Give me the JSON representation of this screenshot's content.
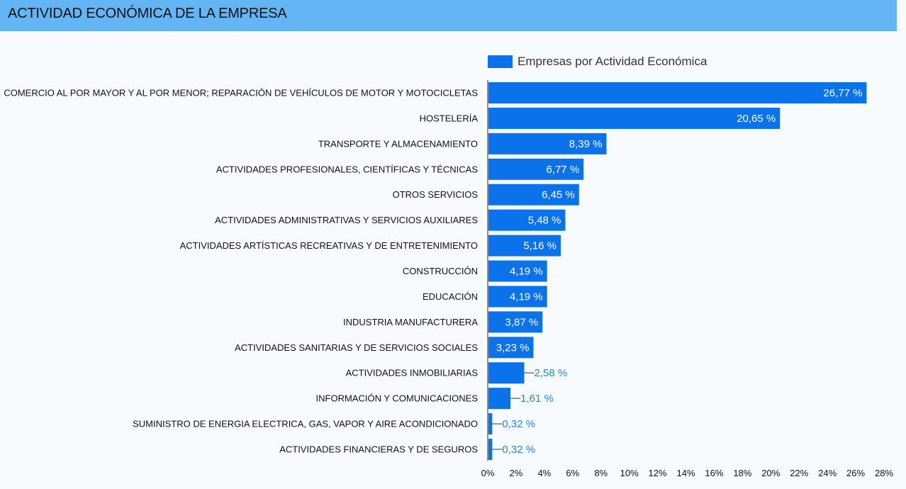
{
  "header": {
    "title": "ACTIVIDAD ECONÓMICA DE LA EMPRESA"
  },
  "colors": {
    "bar": "#0a73ec",
    "header_bg": "#64b5f6",
    "outside_label": "#1e88e5"
  },
  "chart_data": {
    "type": "bar",
    "orientation": "horizontal",
    "title": "ACTIVIDAD ECONÓMICA DE LA EMPRESA",
    "legend_position": "top",
    "grid": false,
    "xlim": [
      0,
      28
    ],
    "xticks": [
      0,
      2,
      4,
      6,
      8,
      10,
      12,
      14,
      16,
      18,
      20,
      22,
      24,
      26,
      28
    ],
    "xtick_labels": [
      "0%",
      "2%",
      "4%",
      "6%",
      "8%",
      "10%",
      "12%",
      "14%",
      "16%",
      "18%",
      "20%",
      "22%",
      "24%",
      "26%",
      "28%"
    ],
    "categories": [
      "COMERCIO AL POR MAYOR Y AL POR MENOR; REPARACIÓN DE VEHÍCULOS DE MOTOR Y MOTOCICLETAS",
      "HOSTELERÍA",
      "TRANSPORTE Y ALMACENAMIENTO",
      "ACTIVIDADES PROFESIONALES, CIENTÍFICAS Y TÉCNICAS",
      "OTROS SERVICIOS",
      "ACTIVIDADES ADMINISTRATIVAS Y SERVICIOS AUXILIARES",
      "ACTIVIDADES ARTÍSTICAS RECREATIVAS Y DE ENTRETENIMIENTO",
      "CONSTRUCCIÓN",
      "EDUCACIÓN",
      "INDUSTRIA MANUFACTURERA",
      "ACTIVIDADES SANITARIAS Y DE SERVICIOS SOCIALES",
      "ACTIVIDADES INMOBILIARIAS",
      "INFORMACIÓN Y COMUNICACIONES",
      "SUMINISTRO DE ENERGIA ELECTRICA, GAS, VAPOR Y AIRE ACONDICIONADO",
      "ACTIVIDADES FINANCIERAS Y DE SEGUROS"
    ],
    "series": [
      {
        "name": "Empresas por Actividad Económica",
        "values": [
          26.77,
          20.65,
          8.39,
          6.77,
          6.45,
          5.48,
          5.16,
          4.19,
          4.19,
          3.87,
          3.23,
          2.58,
          1.61,
          0.32,
          0.32
        ],
        "value_labels": [
          "26,77 %",
          "20,65 %",
          "8,39 %",
          "6,77 %",
          "6,45 %",
          "5,48 %",
          "5,16 %",
          "4,19 %",
          "4,19 %",
          "3,87 %",
          "3,23 %",
          "2,58 %",
          "1,61 %",
          "0,32 %",
          "0,32 %"
        ]
      }
    ]
  }
}
